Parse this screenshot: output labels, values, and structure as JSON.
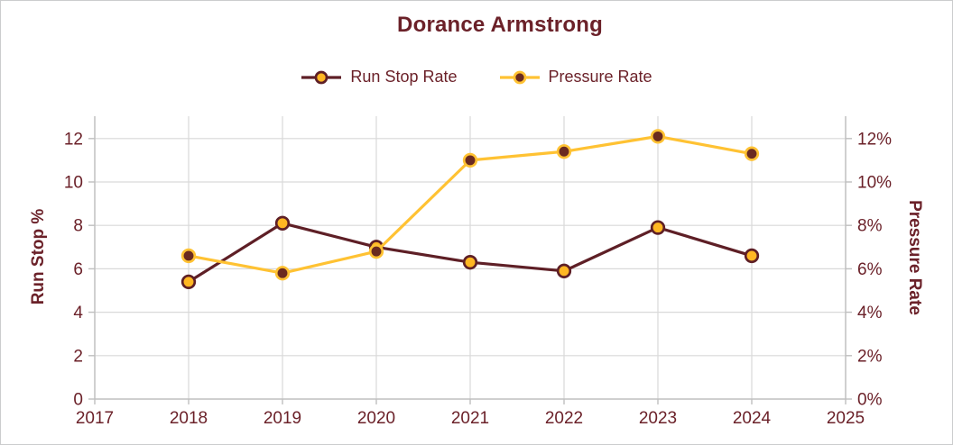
{
  "title": "Dorance Armstrong",
  "legend": {
    "items": [
      {
        "label": "Run Stop Rate"
      },
      {
        "label": "Pressure Rate"
      }
    ]
  },
  "chart_data": {
    "type": "line",
    "title": "Dorance Armstrong",
    "categories": [
      2018,
      2019,
      2020,
      2021,
      2022,
      2023,
      2024
    ],
    "x_axis": {
      "min": 2017,
      "max": 2025,
      "tick_labels": [
        "2017",
        "2018",
        "2019",
        "2020",
        "2021",
        "2022",
        "2023",
        "2024",
        "2025"
      ]
    },
    "left_axis": {
      "label": "Run Stop %",
      "min": 0,
      "max": 13,
      "major_unit": 2,
      "tick_labels": [
        "0",
        "2",
        "4",
        "6",
        "8",
        "10",
        "12"
      ]
    },
    "right_axis": {
      "label": "Pressure Rate",
      "min": 0,
      "max": 13,
      "major_unit": 2,
      "tick_labels": [
        "0%",
        "2%",
        "4%",
        "6%",
        "8%",
        "10%",
        "12%"
      ]
    },
    "grid": true,
    "legend_position": "top",
    "series": [
      {
        "name": "Run Stop Rate",
        "axis": "left",
        "values": [
          5.4,
          8.1,
          7.0,
          6.3,
          5.9,
          7.9,
          6.6
        ],
        "line_color": "#5E1F26",
        "marker_fill": "#FFB723",
        "marker_stroke": "#5E1F26"
      },
      {
        "name": "Pressure Rate",
        "axis": "right",
        "values": [
          6.6,
          5.8,
          6.8,
          11.0,
          11.4,
          12.1,
          11.3
        ],
        "line_color": "#FFC233",
        "marker_fill": "#6A2A20",
        "marker_stroke": "#FFC233"
      }
    ],
    "colors": {
      "grid": "#D9D9D9",
      "axis_line": "#BFBFBF",
      "tick": "#BFBFBF",
      "text": "#6B2129",
      "title": "#6B2129"
    }
  }
}
